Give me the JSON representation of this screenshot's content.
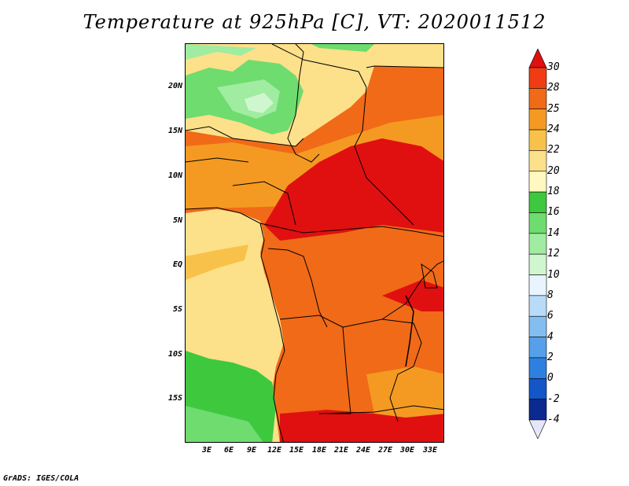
{
  "title": "Temperature at 925hPa [C], VT: 2020011512",
  "credit": "GrADS: IGES/COLA",
  "lat_labels": [
    "20N",
    "15N",
    "10N",
    "5N",
    "EQ",
    "5S",
    "10S",
    "15S"
  ],
  "lon_labels": [
    "3E",
    "6E",
    "9E",
    "12E",
    "15E",
    "18E",
    "21E",
    "24E",
    "27E",
    "30E",
    "33E"
  ],
  "colorbar": {
    "levels": [
      "30",
      "28",
      "25",
      "24",
      "22",
      "20",
      "18",
      "16",
      "14",
      "12",
      "10",
      "8",
      "6",
      "4",
      "2",
      "0",
      "-2",
      "-4"
    ],
    "colors": [
      "#e01010",
      "#f03c14",
      "#f06a18",
      "#f49a22",
      "#f8c24a",
      "#fde08a",
      "#fff8c0",
      "#3ec83e",
      "#6edc6e",
      "#a0eca0",
      "#d0f6d0",
      "#e8f4ff",
      "#b8dcf8",
      "#84bef0",
      "#56a0ea",
      "#2e80e0",
      "#1256c8",
      "#0a2a90",
      "#060864"
    ]
  },
  "colors": {
    "hot": "#e01010",
    "warm": "#f06a18",
    "mild": "#f8c24a",
    "pale": "#fde08a",
    "green": "#3ec83e",
    "lightgreen": "#a0eca0",
    "sea": "#fde08a"
  }
}
